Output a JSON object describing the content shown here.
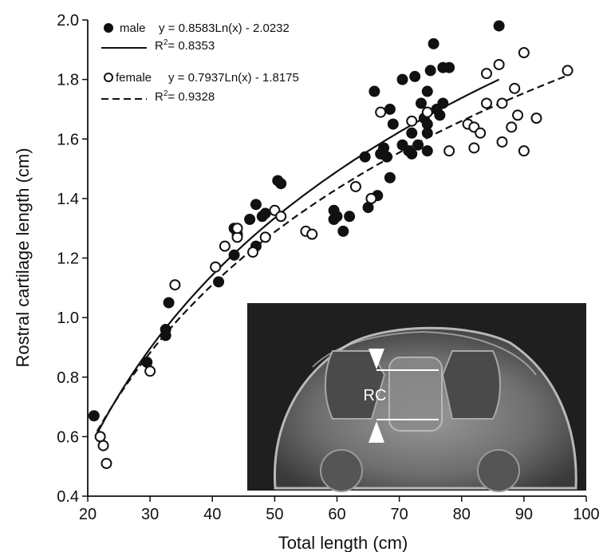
{
  "chart_data": {
    "type": "scatter",
    "xlabel": "Total length (cm)",
    "ylabel": "Rostral cartilage length (cm)",
    "xlim": [
      20,
      100
    ],
    "ylim": [
      0.4,
      2.0
    ],
    "xticks": [
      20,
      30,
      40,
      50,
      60,
      70,
      80,
      90,
      100
    ],
    "yticks": [
      0.4,
      0.6,
      0.8,
      1.0,
      1.2,
      1.4,
      1.6,
      1.8,
      2.0
    ],
    "grid": false,
    "legend_position": "top-left",
    "series": [
      {
        "name": "male",
        "marker": "filled-circle",
        "color": "#111111",
        "trendline": {
          "style": "solid",
          "equation": "y = 0.8583Ln(x) - 2.0232",
          "r2_label": "R",
          "r2_value": "= 0.8353",
          "a": 0.8583,
          "b": -2.0232,
          "x_range": [
            21.5,
            86
          ]
        },
        "points": [
          [
            21,
            0.67
          ],
          [
            29.5,
            0.85
          ],
          [
            32.5,
            0.94
          ],
          [
            32.5,
            0.96
          ],
          [
            33,
            1.05
          ],
          [
            41,
            1.12
          ],
          [
            43.5,
            1.21
          ],
          [
            43.5,
            1.3
          ],
          [
            44,
            1.28
          ],
          [
            46,
            1.33
          ],
          [
            47,
            1.24
          ],
          [
            47,
            1.38
          ],
          [
            48,
            1.34
          ],
          [
            48.5,
            1.35
          ],
          [
            50.5,
            1.46
          ],
          [
            51,
            1.45
          ],
          [
            59.5,
            1.33
          ],
          [
            59.5,
            1.36
          ],
          [
            60,
            1.34
          ],
          [
            61,
            1.29
          ],
          [
            62,
            1.34
          ],
          [
            64.5,
            1.54
          ],
          [
            65,
            1.37
          ],
          [
            65.5,
            1.4
          ],
          [
            66,
            1.76
          ],
          [
            66.5,
            1.41
          ],
          [
            67,
            1.55
          ],
          [
            67.5,
            1.57
          ],
          [
            68,
            1.54
          ],
          [
            68.5,
            1.7
          ],
          [
            69,
            1.65
          ],
          [
            68.5,
            1.47
          ],
          [
            70.5,
            1.8
          ],
          [
            70.5,
            1.58
          ],
          [
            71.5,
            1.56
          ],
          [
            72,
            1.55
          ],
          [
            72,
            1.62
          ],
          [
            72.5,
            1.81
          ],
          [
            73,
            1.58
          ],
          [
            73.5,
            1.72
          ],
          [
            74,
            1.67
          ],
          [
            74.5,
            1.56
          ],
          [
            74.5,
            1.76
          ],
          [
            74.5,
            1.65
          ],
          [
            74.5,
            1.62
          ],
          [
            75,
            1.83
          ],
          [
            75.5,
            1.92
          ],
          [
            76,
            1.7
          ],
          [
            76.5,
            1.68
          ],
          [
            77,
            1.84
          ],
          [
            77,
            1.72
          ],
          [
            78,
            1.84
          ],
          [
            86,
            1.98
          ]
        ]
      },
      {
        "name": "female",
        "marker": "open-circle",
        "color": "#111111",
        "trendline": {
          "style": "dashed",
          "equation": "y = 0.7937Ln(x) - 1.8175",
          "r2_label": "R",
          "r2_value": "= 0.9328",
          "a": 0.7937,
          "b": -1.8175,
          "x_range": [
            21.5,
            97
          ]
        },
        "points": [
          [
            22,
            0.6
          ],
          [
            22.5,
            0.57
          ],
          [
            23,
            0.51
          ],
          [
            30,
            0.82
          ],
          [
            34,
            1.11
          ],
          [
            40.5,
            1.17
          ],
          [
            42,
            1.24
          ],
          [
            44,
            1.27
          ],
          [
            44,
            1.3
          ],
          [
            46.5,
            1.22
          ],
          [
            48.5,
            1.27
          ],
          [
            50,
            1.36
          ],
          [
            51,
            1.34
          ],
          [
            55,
            1.29
          ],
          [
            56,
            1.28
          ],
          [
            63,
            1.44
          ],
          [
            65.5,
            1.4
          ],
          [
            67,
            1.69
          ],
          [
            72,
            1.66
          ],
          [
            74.5,
            1.69
          ],
          [
            78,
            1.56
          ],
          [
            81,
            1.65
          ],
          [
            82,
            1.64
          ],
          [
            82,
            1.57
          ],
          [
            83,
            1.62
          ],
          [
            84,
            1.82
          ],
          [
            84,
            1.72
          ],
          [
            86,
            1.85
          ],
          [
            86.5,
            1.59
          ],
          [
            86.5,
            1.72
          ],
          [
            88,
            1.64
          ],
          [
            88.5,
            1.77
          ],
          [
            89,
            1.68
          ],
          [
            90,
            1.89
          ],
          [
            90,
            1.56
          ],
          [
            92,
            1.67
          ],
          [
            97,
            1.83
          ]
        ]
      }
    ],
    "annotations": [
      {
        "text": "RC"
      }
    ]
  }
}
